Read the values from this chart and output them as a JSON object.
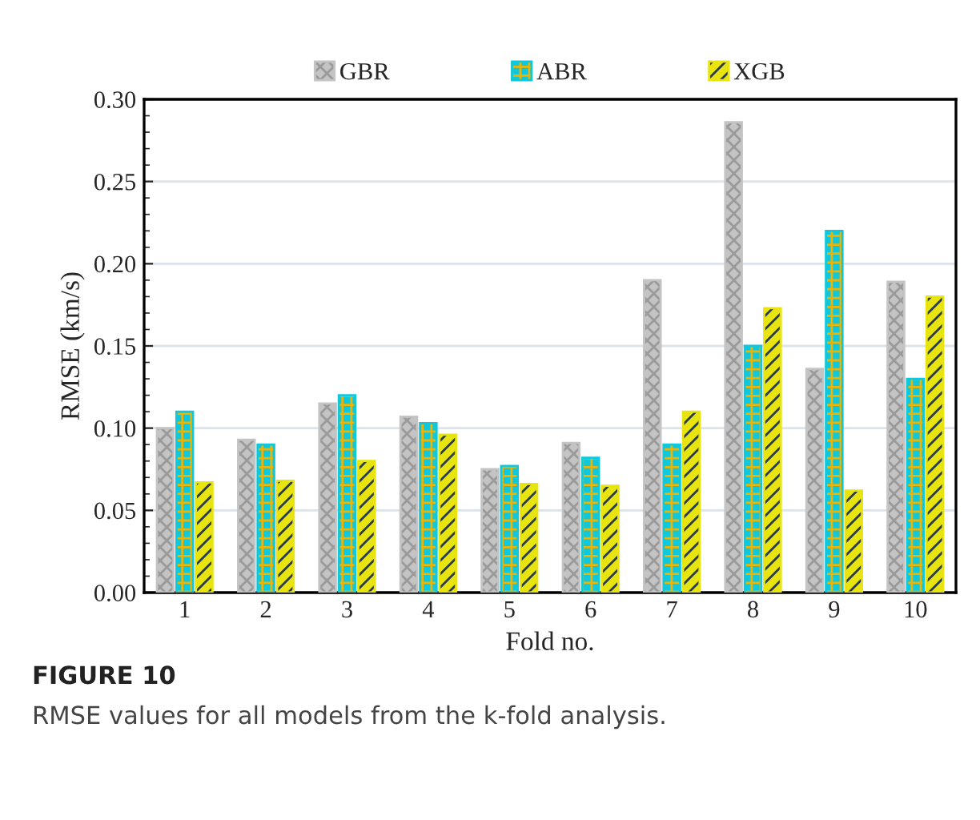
{
  "chart_data": {
    "type": "bar",
    "xlabel": "Fold no.",
    "ylabel": "RMSE (km/s)",
    "categories": [
      "1",
      "2",
      "3",
      "4",
      "5",
      "6",
      "7",
      "8",
      "9",
      "10"
    ],
    "series": [
      {
        "name": "GBR",
        "color": "#c4c4c4",
        "values": [
          0.1,
          0.093,
          0.115,
          0.107,
          0.075,
          0.091,
          0.19,
          0.286,
          0.136,
          0.189
        ]
      },
      {
        "name": "ABR",
        "color": "#10c8dc",
        "values": [
          0.11,
          0.09,
          0.12,
          0.103,
          0.077,
          0.082,
          0.09,
          0.15,
          0.22,
          0.13
        ]
      },
      {
        "name": "XGB",
        "color": "#e8e410",
        "values": [
          0.067,
          0.068,
          0.08,
          0.096,
          0.066,
          0.065,
          0.11,
          0.173,
          0.062,
          0.18
        ]
      }
    ],
    "ylim": [
      0,
      0.3
    ],
    "yticks": [
      {
        "value": 0,
        "label": "0.00"
      },
      {
        "value": 0.05,
        "label": "0.05"
      },
      {
        "value": 0.1,
        "label": "0.10"
      },
      {
        "value": 0.15,
        "label": "0.15"
      },
      {
        "value": 0.2,
        "label": "0.20"
      },
      {
        "value": 0.25,
        "label": "0.25"
      },
      {
        "value": 0.3,
        "label": "0.30"
      }
    ],
    "grid": "y",
    "legend": "top",
    "annotations": [
      "FIGURE 10",
      "RMSE values for all models from the k-fold analysis."
    ]
  }
}
